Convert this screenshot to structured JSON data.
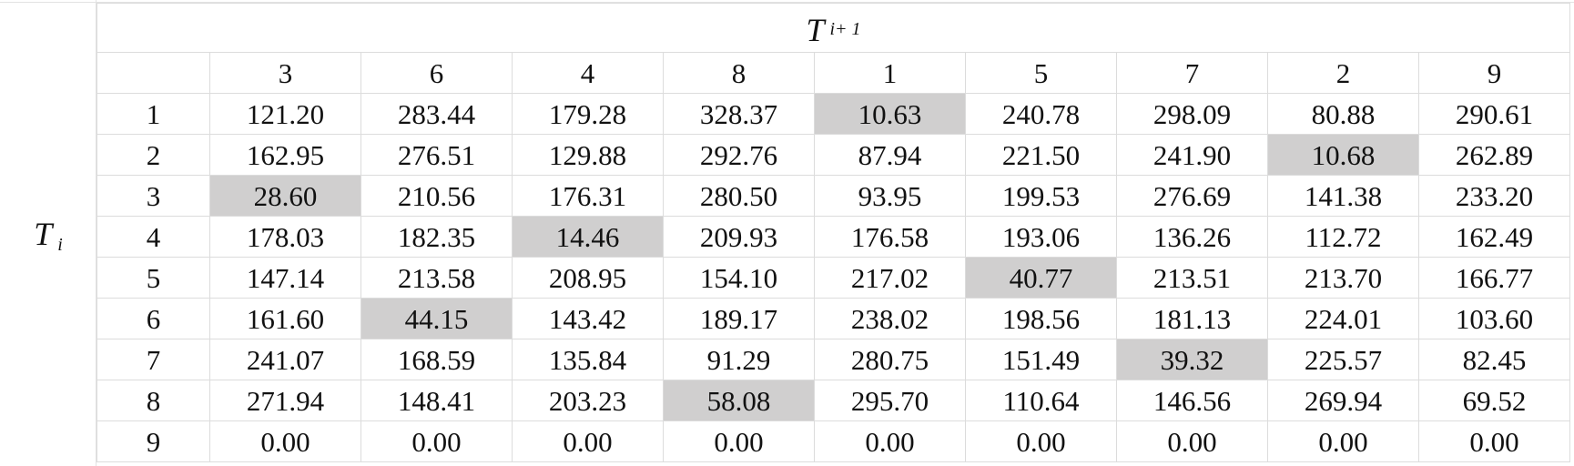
{
  "row_axis": {
    "symbol": "T",
    "subscript": "i"
  },
  "col_axis": {
    "symbol": "T",
    "subscript": "i+ 1"
  },
  "column_headers": [
    "3",
    "6",
    "4",
    "8",
    "1",
    "5",
    "7",
    "2",
    "9"
  ],
  "highlight_color": "#d0cfcf",
  "rows": [
    {
      "label": "1",
      "values": [
        "121.20",
        "283.44",
        "179.28",
        "328.37",
        "10.63",
        "240.78",
        "298.09",
        "80.88",
        "290.61"
      ],
      "highlight_col": 4
    },
    {
      "label": "2",
      "values": [
        "162.95",
        "276.51",
        "129.88",
        "292.76",
        "87.94",
        "221.50",
        "241.90",
        "10.68",
        "262.89"
      ],
      "highlight_col": 7
    },
    {
      "label": "3",
      "values": [
        "28.60",
        "210.56",
        "176.31",
        "280.50",
        "93.95",
        "199.53",
        "276.69",
        "141.38",
        "233.20"
      ],
      "highlight_col": 0
    },
    {
      "label": "4",
      "values": [
        "178.03",
        "182.35",
        "14.46",
        "209.93",
        "176.58",
        "193.06",
        "136.26",
        "112.72",
        "162.49"
      ],
      "highlight_col": 2
    },
    {
      "label": "5",
      "values": [
        "147.14",
        "213.58",
        "208.95",
        "154.10",
        "217.02",
        "40.77",
        "213.51",
        "213.70",
        "166.77"
      ],
      "highlight_col": 5
    },
    {
      "label": "6",
      "values": [
        "161.60",
        "44.15",
        "143.42",
        "189.17",
        "238.02",
        "198.56",
        "181.13",
        "224.01",
        "103.60"
      ],
      "highlight_col": 1
    },
    {
      "label": "7",
      "values": [
        "241.07",
        "168.59",
        "135.84",
        "91.29",
        "280.75",
        "151.49",
        "39.32",
        "225.57",
        "82.45"
      ],
      "highlight_col": 6
    },
    {
      "label": "8",
      "values": [
        "271.94",
        "148.41",
        "203.23",
        "58.08",
        "295.70",
        "110.64",
        "146.56",
        "269.94",
        "69.52"
      ],
      "highlight_col": 3
    },
    {
      "label": "9",
      "values": [
        "0.00",
        "0.00",
        "0.00",
        "0.00",
        "0.00",
        "0.00",
        "0.00",
        "0.00",
        "0.00"
      ],
      "highlight_col": null
    }
  ]
}
